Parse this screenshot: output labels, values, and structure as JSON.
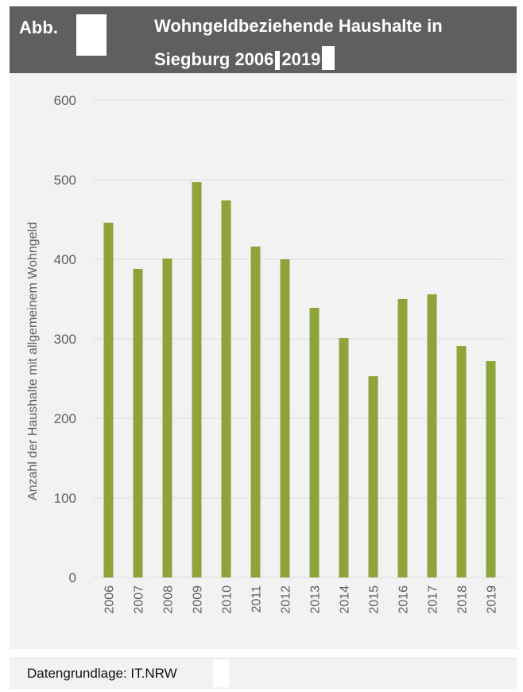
{
  "header": {
    "abb_label": "Abb.",
    "title_line1": "Wohngeldbeziehende Haushalte in",
    "title_line2_part1": "Siegburg 2006",
    "title_line2_part2": "2019"
  },
  "footer": {
    "source": "Datengrundlage: IT.NRW"
  },
  "colors": {
    "bar": "#8ea339",
    "header_bg": "#5f5f5f",
    "plot_bg": "#f2f2f2",
    "grid": "#dcdcdc",
    "text": "#606060"
  },
  "chart_data": {
    "type": "bar",
    "title": "Wohngeldbeziehende Haushalte in Siegburg 2006 2019",
    "ylabel": "Anzahl der Haushalte mit allgemeinem Wohngeld",
    "xlabel": "",
    "categories": [
      "2006",
      "2007",
      "2008",
      "2009",
      "2010",
      "2011",
      "2012",
      "2013",
      "2014",
      "2015",
      "2016",
      "2017",
      "2018",
      "2019"
    ],
    "values": [
      446,
      388,
      401,
      497,
      474,
      416,
      400,
      339,
      301,
      253,
      350,
      356,
      291,
      272
    ],
    "ylim": [
      0,
      600
    ],
    "yticks": [
      0,
      100,
      200,
      300,
      400,
      500,
      600
    ],
    "grid": true,
    "legend": "none"
  }
}
